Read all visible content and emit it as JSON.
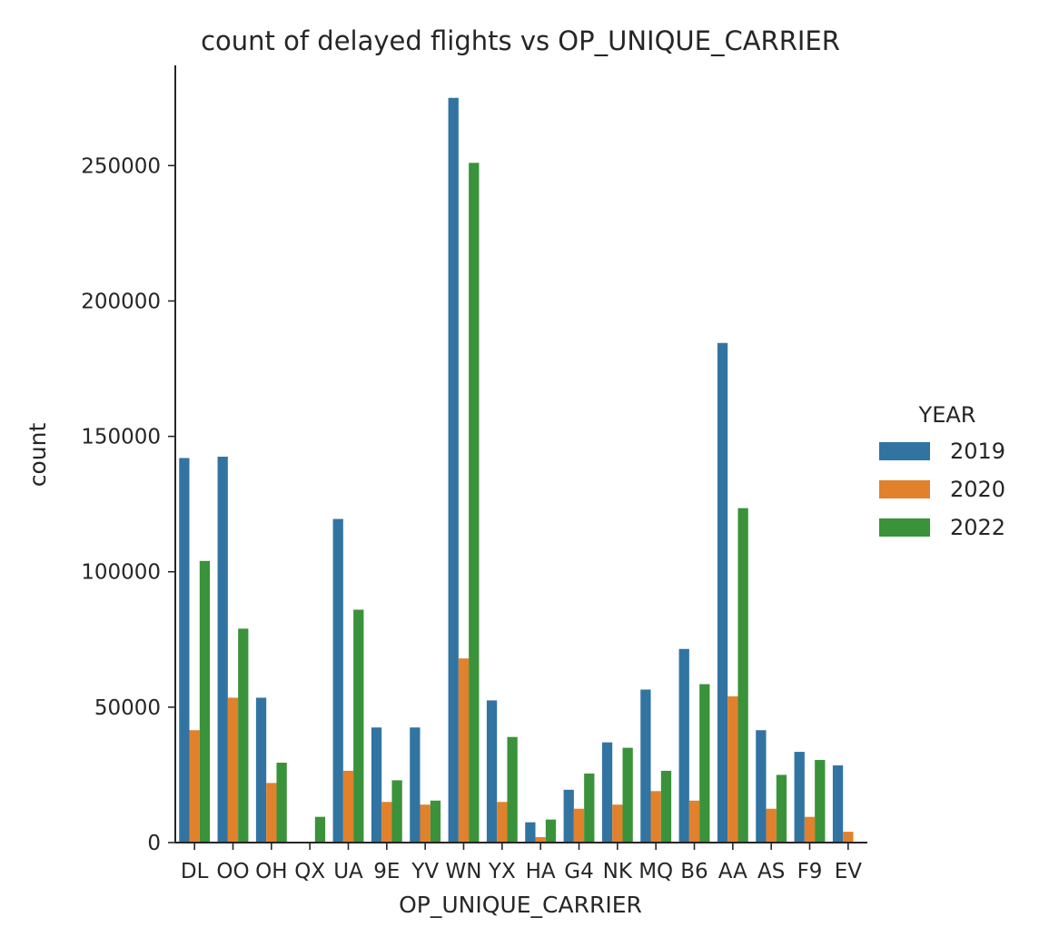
{
  "chart_data": {
    "type": "bar",
    "title": "count of delayed flights vs OP_UNIQUE_CARRIER",
    "xlabel": "OP_UNIQUE_CARRIER",
    "ylabel": "count",
    "ylim": [
      0,
      287000
    ],
    "yticks": [
      0,
      50000,
      100000,
      150000,
      200000,
      250000
    ],
    "ytick_labels": [
      "0",
      "50000",
      "100000",
      "150000",
      "200000",
      "250000"
    ],
    "grid": false,
    "legend": {
      "title": "YEAR",
      "placement": "right"
    },
    "categories": [
      "DL",
      "OO",
      "OH",
      "QX",
      "UA",
      "9E",
      "YV",
      "WN",
      "YX",
      "HA",
      "G4",
      "NK",
      "MQ",
      "B6",
      "AA",
      "AS",
      "F9",
      "EV"
    ],
    "series": [
      {
        "name": "2019",
        "color": "#3274a1",
        "values": [
          142000,
          142500,
          53500,
          0,
          119500,
          42500,
          42500,
          275000,
          52500,
          7500,
          19500,
          37000,
          56500,
          71500,
          184500,
          41500,
          33500,
          28500
        ]
      },
      {
        "name": "2020",
        "color": "#e1812c",
        "values": [
          41500,
          53500,
          22000,
          0,
          26500,
          15000,
          14000,
          68000,
          15000,
          2000,
          12500,
          14000,
          19000,
          15500,
          54000,
          12500,
          9500,
          4000
        ]
      },
      {
        "name": "2022",
        "color": "#3a923a",
        "values": [
          104000,
          79000,
          29500,
          9500,
          86000,
          23000,
          15500,
          251000,
          39000,
          8500,
          25500,
          35000,
          26500,
          58500,
          123500,
          25000,
          30500,
          0
        ]
      }
    ]
  }
}
